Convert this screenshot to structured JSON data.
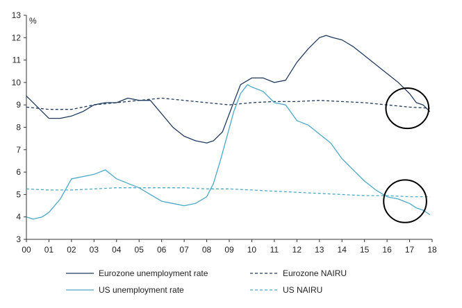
{
  "chart_data": {
    "type": "line",
    "title": "",
    "xlabel": "",
    "ylabel": "%",
    "ylim": [
      3,
      13
    ],
    "yticks": [
      "3",
      "4",
      "5",
      "6",
      "7",
      "8",
      "9",
      "10",
      "11",
      "12",
      "13"
    ],
    "xlim": [
      2000,
      2018
    ],
    "xticks": [
      "00",
      "01",
      "02",
      "03",
      "04",
      "05",
      "06",
      "07",
      "08",
      "09",
      "10",
      "11",
      "12",
      "13",
      "14",
      "15",
      "16",
      "17",
      "18"
    ],
    "grid": false,
    "legend_position": "bottom",
    "series": [
      {
        "name": "Eurozone unemployment rate",
        "color": "#1f3a5f",
        "style": "solid",
        "x": [
          2000,
          2000.5,
          2001,
          2001.5,
          2002,
          2002.5,
          2003,
          2003.5,
          2004,
          2004.5,
          2005,
          2005.5,
          2006,
          2006.5,
          2007,
          2007.5,
          2008,
          2008.3,
          2008.7,
          2009,
          2009.5,
          2010,
          2010.5,
          2011,
          2011.5,
          2012,
          2012.5,
          2013,
          2013.3,
          2013.6,
          2014,
          2014.5,
          2015,
          2015.5,
          2016,
          2016.5,
          2017,
          2017.3,
          2017.6,
          2017.9
        ],
        "values": [
          9.4,
          8.9,
          8.4,
          8.4,
          8.5,
          8.7,
          9.0,
          9.1,
          9.1,
          9.3,
          9.2,
          9.2,
          8.6,
          8.0,
          7.6,
          7.4,
          7.3,
          7.4,
          7.8,
          8.6,
          9.9,
          10.2,
          10.2,
          10.0,
          10.1,
          10.9,
          11.5,
          12.0,
          12.1,
          12.0,
          11.9,
          11.6,
          11.2,
          10.8,
          10.4,
          10.0,
          9.5,
          9.1,
          9.0,
          8.7
        ]
      },
      {
        "name": "Eurozone NAIRU",
        "color": "#1f3a5f",
        "style": "dashed",
        "x": [
          2000,
          2001,
          2002,
          2003,
          2004,
          2005,
          2006,
          2007,
          2008,
          2009,
          2010,
          2011,
          2012,
          2013,
          2014,
          2015,
          2016,
          2017,
          2017.9
        ],
        "values": [
          8.9,
          8.8,
          8.8,
          9.0,
          9.1,
          9.2,
          9.3,
          9.2,
          9.1,
          9.0,
          9.1,
          9.15,
          9.15,
          9.2,
          9.15,
          9.1,
          9.0,
          8.9,
          8.85
        ]
      },
      {
        "name": "US unemployment rate",
        "color": "#4aa8c8",
        "style": "solid",
        "x": [
          2000,
          2000.3,
          2000.7,
          2001,
          2001.5,
          2002,
          2002.5,
          2003,
          2003.5,
          2004,
          2004.5,
          2005,
          2005.5,
          2006,
          2006.5,
          2007,
          2007.5,
          2008,
          2008.3,
          2008.6,
          2008.9,
          2009.2,
          2009.5,
          2009.8,
          2010,
          2010.5,
          2011,
          2011.5,
          2012,
          2012.5,
          2013,
          2013.5,
          2014,
          2014.5,
          2015,
          2015.5,
          2016,
          2016.5,
          2017,
          2017.3,
          2017.6,
          2017.9
        ],
        "values": [
          4.0,
          3.9,
          4.0,
          4.2,
          4.8,
          5.7,
          5.8,
          5.9,
          6.1,
          5.7,
          5.5,
          5.3,
          5.0,
          4.7,
          4.6,
          4.5,
          4.6,
          4.9,
          5.5,
          6.5,
          7.6,
          8.7,
          9.5,
          9.9,
          9.8,
          9.6,
          9.1,
          9.0,
          8.3,
          8.1,
          7.7,
          7.3,
          6.6,
          6.1,
          5.6,
          5.2,
          4.9,
          4.8,
          4.6,
          4.4,
          4.3,
          4.1
        ]
      },
      {
        "name": "US NAIRU",
        "color": "#4aa8c8",
        "style": "dashed",
        "x": [
          2000,
          2001,
          2002,
          2003,
          2004,
          2005,
          2006,
          2007,
          2008,
          2009,
          2010,
          2011,
          2012,
          2013,
          2014,
          2015,
          2016,
          2017,
          2017.9
        ],
        "values": [
          5.25,
          5.2,
          5.2,
          5.25,
          5.3,
          5.3,
          5.3,
          5.3,
          5.25,
          5.25,
          5.2,
          5.15,
          5.1,
          5.05,
          5.0,
          4.95,
          4.95,
          4.9,
          4.9
        ]
      }
    ],
    "annotations": [
      {
        "type": "ellipse",
        "x": 2016.9,
        "y": 8.85,
        "rx_years": 0.95,
        "ry_units": 0.9
      },
      {
        "type": "ellipse",
        "x": 2016.8,
        "y": 4.7,
        "rx_years": 0.95,
        "ry_units": 0.95
      }
    ]
  }
}
